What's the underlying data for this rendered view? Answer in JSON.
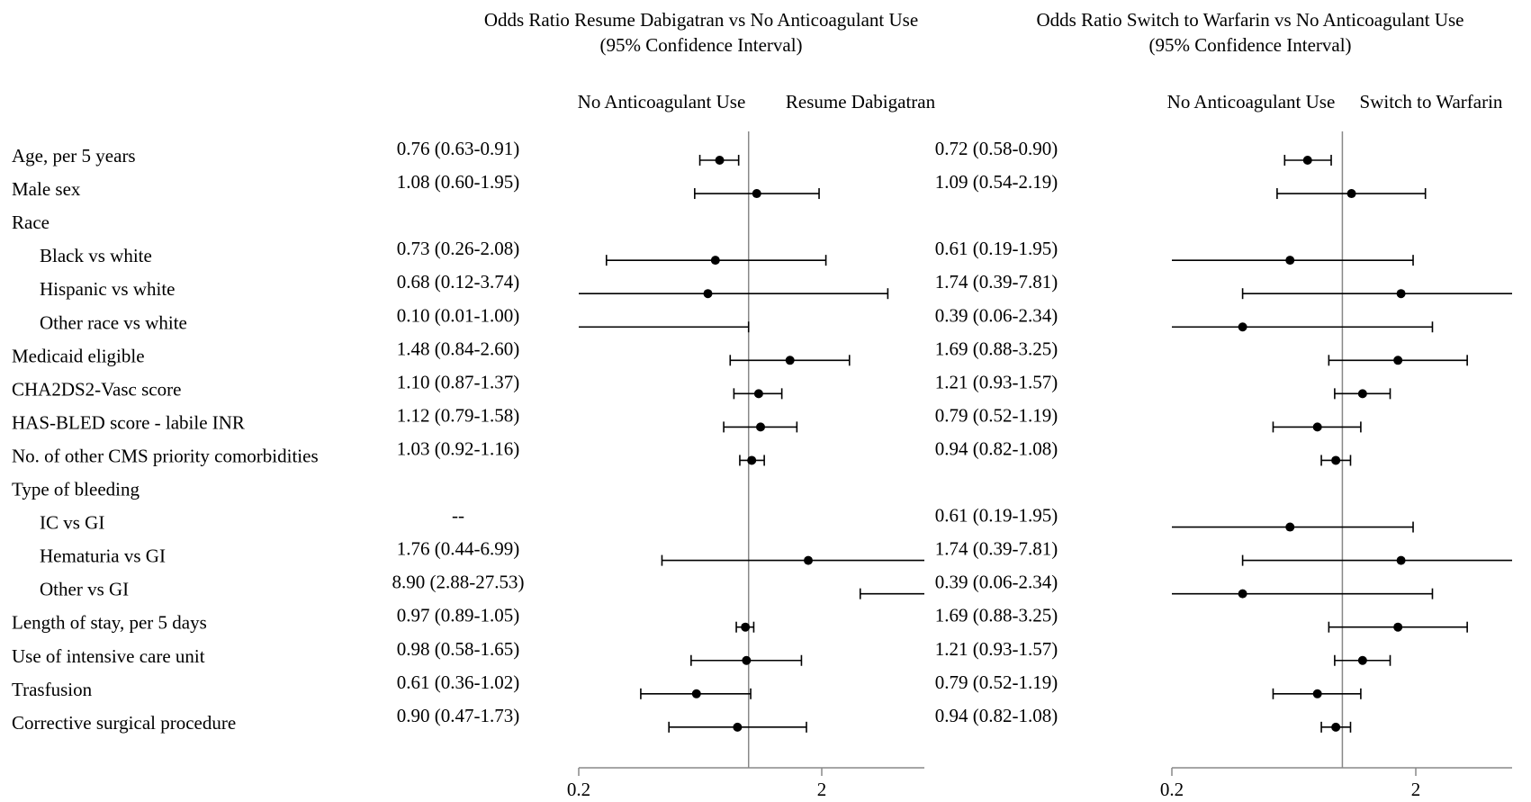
{
  "chart_data": {
    "type": "forest",
    "x_scale": "log",
    "xlim": [
      0.2,
      6
    ],
    "x_ticks": [
      "0.2",
      "2"
    ],
    "reference_value": 1,
    "rows": [
      {
        "label": "Age, per 5 years",
        "indent": false
      },
      {
        "label": "Male sex",
        "indent": false
      },
      {
        "label": "Race",
        "indent": false,
        "header": true
      },
      {
        "label": "Black vs white",
        "indent": true
      },
      {
        "label": "Hispanic vs white",
        "indent": true
      },
      {
        "label": "Other race vs white",
        "indent": true
      },
      {
        "label": "Medicaid eligible",
        "indent": false
      },
      {
        "label": "CHA2DS2-Vasc score",
        "indent": false
      },
      {
        "label": "HAS-BLED score - labile INR",
        "indent": false
      },
      {
        "label": "No. of other CMS priority comorbidities",
        "indent": false
      },
      {
        "label": "Type of bleeding",
        "indent": false,
        "header": true
      },
      {
        "label": "IC vs GI",
        "indent": true
      },
      {
        "label": "Hematuria vs GI",
        "indent": true
      },
      {
        "label": "Other vs GI",
        "indent": true
      },
      {
        "label": "Length of stay, per 5 days",
        "indent": false
      },
      {
        "label": "Use of intensive care unit",
        "indent": false
      },
      {
        "label": "Trasfusion",
        "indent": false
      },
      {
        "label": "Corrective surgical procedure",
        "indent": false
      }
    ],
    "panels": [
      {
        "title_line1": "Odds Ratio Resume Dabigatran vs No Anticoagulant Use",
        "title_line2": "(95% Confidence Interval)",
        "left_label": "No Anticoagulant Use",
        "right_label": "Resume Dabigatran",
        "series": [
          {
            "text": "0.76 (0.63-0.91)",
            "or": 0.76,
            "lo": 0.63,
            "hi": 0.91
          },
          {
            "text": "1.08 (0.60-1.95)",
            "or": 1.08,
            "lo": 0.6,
            "hi": 1.95
          },
          {
            "text": "",
            "or": null
          },
          {
            "text": "0.73 (0.26-2.08)",
            "or": 0.73,
            "lo": 0.26,
            "hi": 2.08
          },
          {
            "text": "0.68 (0.12-3.74)",
            "or": 0.68,
            "lo": 0.12,
            "hi": 3.74
          },
          {
            "text": "0.10 (0.01-1.00)",
            "or": 0.1,
            "lo": 0.01,
            "hi": 1.0
          },
          {
            "text": "1.48 (0.84-2.60)",
            "or": 1.48,
            "lo": 0.84,
            "hi": 2.6
          },
          {
            "text": "1.10 (0.87-1.37)",
            "or": 1.1,
            "lo": 0.87,
            "hi": 1.37
          },
          {
            "text": "1.12 (0.79-1.58)",
            "or": 1.12,
            "lo": 0.79,
            "hi": 1.58
          },
          {
            "text": "1.03 (0.92-1.16)",
            "or": 1.03,
            "lo": 0.92,
            "hi": 1.16
          },
          {
            "text": "",
            "or": null
          },
          {
            "text": "--",
            "or": null
          },
          {
            "text": "1.76 (0.44-6.99)",
            "or": 1.76,
            "lo": 0.44,
            "hi": 6.99
          },
          {
            "text": "8.90 (2.88-27.53)",
            "or": 8.9,
            "lo": 2.88,
            "hi": 27.53
          },
          {
            "text": "0.97 (0.89-1.05)",
            "or": 0.97,
            "lo": 0.89,
            "hi": 1.05
          },
          {
            "text": "0.98 (0.58-1.65)",
            "or": 0.98,
            "lo": 0.58,
            "hi": 1.65
          },
          {
            "text": "0.61 (0.36-1.02)",
            "or": 0.61,
            "lo": 0.36,
            "hi": 1.02
          },
          {
            "text": "0.90 (0.47-1.73)",
            "or": 0.9,
            "lo": 0.47,
            "hi": 1.73
          }
        ]
      },
      {
        "title_line1": "Odds Ratio Switch to Warfarin vs No Anticoagulant Use",
        "title_line2": "(95% Confidence Interval)",
        "left_label": "No Anticoagulant Use",
        "right_label": "Switch to Warfarin",
        "series": [
          {
            "text": "0.72 (0.58-0.90)",
            "or": 0.72,
            "lo": 0.58,
            "hi": 0.9
          },
          {
            "text": "1.09 (0.54-2.19)",
            "or": 1.09,
            "lo": 0.54,
            "hi": 2.19
          },
          {
            "text": "",
            "or": null
          },
          {
            "text": "0.61 (0.19-1.95)",
            "or": 0.61,
            "lo": 0.19,
            "hi": 1.95
          },
          {
            "text": "1.74 (0.39-7.81)",
            "or": 1.74,
            "lo": 0.39,
            "hi": 7.81
          },
          {
            "text": "0.39 (0.06-2.34)",
            "or": 0.39,
            "lo": 0.06,
            "hi": 2.34
          },
          {
            "text": "1.69 (0.88-3.25)",
            "or": 1.69,
            "lo": 0.88,
            "hi": 3.25
          },
          {
            "text": "1.21 (0.93-1.57)",
            "or": 1.21,
            "lo": 0.93,
            "hi": 1.57
          },
          {
            "text": "0.79 (0.52-1.19)",
            "or": 0.79,
            "lo": 0.52,
            "hi": 1.19
          },
          {
            "text": "0.94 (0.82-1.08)",
            "or": 0.94,
            "lo": 0.82,
            "hi": 1.08
          },
          {
            "text": "",
            "or": null
          },
          {
            "text": "0.61 (0.19-1.95)",
            "or": 0.61,
            "lo": 0.19,
            "hi": 1.95
          },
          {
            "text": "1.74 (0.39-7.81)",
            "or": 1.74,
            "lo": 0.39,
            "hi": 7.81
          },
          {
            "text": "0.39 (0.06-2.34)",
            "or": 0.39,
            "lo": 0.06,
            "hi": 2.34
          },
          {
            "text": "1.69 (0.88-3.25)",
            "or": 1.69,
            "lo": 0.88,
            "hi": 3.25
          },
          {
            "text": "1.21 (0.93-1.57)",
            "or": 1.21,
            "lo": 0.93,
            "hi": 1.57
          },
          {
            "text": "0.79 (0.52-1.19)",
            "or": 0.79,
            "lo": 0.52,
            "hi": 1.19
          },
          {
            "text": "0.94 (0.82-1.08)",
            "or": 0.94,
            "lo": 0.82,
            "hi": 1.08
          }
        ]
      }
    ]
  }
}
